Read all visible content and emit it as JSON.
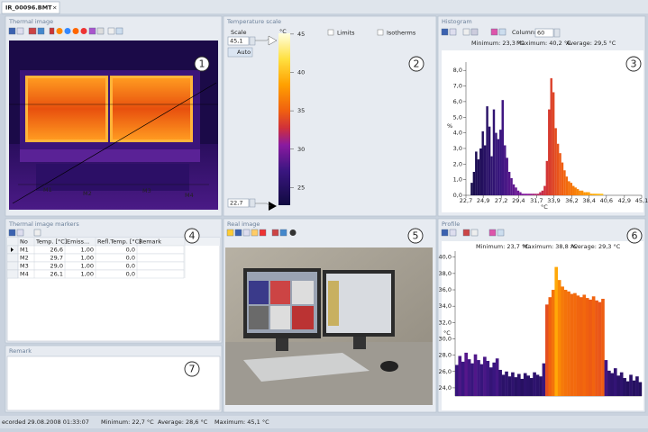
{
  "tab": "IR_00096.BMT",
  "thermal_image": {
    "title": "Thermal image"
  },
  "temperature_scale": {
    "title": "Temperature scale",
    "scale_label": "Scale",
    "unit": "°C",
    "max_input": "45,1",
    "min_input": "22,7",
    "auto": "Auto",
    "limits": "Limits",
    "isotherms": "Isotherms",
    "lim": [
      22.7,
      45.1
    ],
    "ticks": [
      45,
      40,
      35,
      30,
      25
    ]
  },
  "histogram": {
    "title": "Histogram",
    "columns_label": "Columns",
    "columns": "60",
    "stats": [
      "Minimum: 23,3 °C",
      "Maximum: 40,2 °C",
      "Average: 29,5 °C"
    ],
    "chart": {
      "type": "histogram",
      "y_label": "%",
      "x_label": "°C",
      "bins": [
        23.3,
        23.58,
        23.86,
        24.15,
        24.43,
        24.71,
        24.99,
        25.27,
        25.55,
        25.84,
        26.12,
        26.4,
        26.68,
        26.96,
        27.24,
        27.53,
        27.81,
        28.09,
        28.37,
        28.65,
        28.93,
        29.22,
        29.5,
        29.78,
        30.06,
        30.34,
        30.62,
        30.91,
        31.19,
        31.47,
        31.75,
        32.03,
        32.31,
        32.6,
        32.88,
        33.16,
        33.44,
        33.72,
        34.0,
        34.29,
        34.57,
        34.85,
        35.13,
        35.41,
        35.69,
        35.98,
        36.26,
        36.54,
        36.82,
        37.1,
        37.38,
        37.67,
        37.95,
        38.23,
        38.51,
        38.79,
        39.07,
        39.36,
        39.64,
        39.92,
        40.2
      ],
      "values": [
        0.8,
        1.5,
        2.8,
        2.3,
        3.0,
        4.1,
        3.2,
        5.7,
        4.4,
        2.5,
        5.5,
        4.0,
        3.6,
        4.2,
        6.1,
        3.2,
        2.4,
        1.5,
        1.1,
        0.7,
        0.5,
        0.3,
        0.2,
        0.1,
        0.1,
        0.1,
        0.1,
        0.1,
        0.1,
        0.1,
        0.1,
        0.2,
        0.3,
        0.6,
        2.2,
        5.5,
        7.5,
        6.6,
        4.3,
        3.3,
        2.7,
        2.1,
        1.6,
        1.2,
        0.9,
        0.8,
        0.6,
        0.5,
        0.4,
        0.3,
        0.3,
        0.2,
        0.2,
        0.2,
        0.1,
        0.1,
        0.1,
        0.1,
        0.1,
        0.1
      ],
      "xlim": [
        22.7,
        45.1
      ],
      "xticks": [
        {
          "value": 22.7,
          "label": "22,7"
        },
        {
          "value": 24.9,
          "label": "24,9"
        },
        {
          "value": 27.2,
          "label": "27,2"
        },
        {
          "value": 29.4,
          "label": "29,4"
        },
        {
          "value": 31.7,
          "label": "31,7"
        },
        {
          "value": 33.9,
          "label": "33,9"
        },
        {
          "value": 36.2,
          "label": "36,2"
        },
        {
          "value": 38.4,
          "label": "38,4"
        },
        {
          "value": 40.6,
          "label": "40,6"
        },
        {
          "value": 42.9,
          "label": "42,9"
        },
        {
          "value": 45.1,
          "label": "45,1"
        }
      ],
      "ylim": [
        0,
        8.3
      ],
      "yticks": [
        {
          "value": 0,
          "label": "0,0"
        },
        {
          "value": 1,
          "label": "1,0"
        },
        {
          "value": 2,
          "label": "2,0"
        },
        {
          "value": 3,
          "label": "3,0"
        },
        {
          "value": 4,
          "label": "4,0"
        },
        {
          "value": 5,
          "label": "5,0"
        },
        {
          "value": 6,
          "label": "6,0"
        },
        {
          "value": 7,
          "label": "7,0"
        },
        {
          "value": 8,
          "label": "8,0"
        }
      ]
    }
  },
  "markers": {
    "title": "Thermal image markers",
    "columns": [
      "No",
      "Temp. [°C]",
      "Emiss...",
      "Refl.Temp. [°C]",
      "Remark"
    ],
    "rows": [
      [
        "M1",
        "26,6",
        "1,00",
        "0,0"
      ],
      [
        "M2",
        "29,7",
        "1,00",
        "0,0"
      ],
      [
        "M3",
        "29,0",
        "1,00",
        "0,0"
      ],
      [
        "M4",
        "26,1",
        "1,00",
        "0,0"
      ]
    ]
  },
  "real_image": {
    "title": "Real image"
  },
  "profile": {
    "title": "Profile",
    "stats": [
      "Minimum: 23,7 °C",
      "Maximum: 38,8 °C",
      "Average: 29,3 °C"
    ],
    "chart": {
      "type": "bar",
      "y_label": "°C",
      "values": [
        26.8,
        27.9,
        27.2,
        28.3,
        27.5,
        27.0,
        28.1,
        27.4,
        26.9,
        27.8,
        27.3,
        26.5,
        27.1,
        27.6,
        26.2,
        25.6,
        26.0,
        25.4,
        25.9,
        25.3,
        25.7,
        25.1,
        25.8,
        25.5,
        25.2,
        25.9,
        25.6,
        25.4,
        27.0,
        34.2,
        35.1,
        36.0,
        38.8,
        37.2,
        36.4,
        36.0,
        35.8,
        35.5,
        35.6,
        35.3,
        35.1,
        35.4,
        35.0,
        34.8,
        35.2,
        34.7,
        34.5,
        34.9,
        27.4,
        26.1,
        25.8,
        26.4,
        25.5,
        25.9,
        25.2,
        24.8,
        25.6,
        24.9,
        25.4,
        24.7
      ],
      "ylim": [
        23,
        40.3
      ],
      "yticks": [
        {
          "value": 24,
          "label": "24,0"
        },
        {
          "value": 26,
          "label": "26,0"
        },
        {
          "value": 28,
          "label": "28,0"
        },
        {
          "value": 30,
          "label": "30,0"
        },
        {
          "value": 32,
          "label": "32,0"
        },
        {
          "value": 34,
          "label": "34,0"
        },
        {
          "value": 36,
          "label": "36,0"
        },
        {
          "value": 38,
          "label": "38,0"
        },
        {
          "value": 40,
          "label": "40,0"
        }
      ]
    }
  },
  "remark": {
    "title": "Remark"
  },
  "callouts": [
    "1",
    "2",
    "3",
    "4",
    "5",
    "6",
    "7"
  ],
  "status": [
    "ecorded 29.08.2008 01:33:07",
    "Minimum: 22,7 °C",
    "Average: 28,6 °C",
    "Maximum: 45,1 °C"
  ]
}
